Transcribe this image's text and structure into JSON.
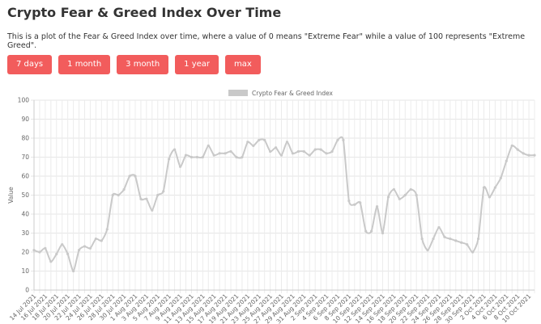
{
  "header": {
    "title": "Crypto Fear & Greed Index Over Time",
    "description": "This is a plot of the Fear & Greed Index over time, where a value of 0 means \"Extreme Fear\" while a value of 100 represents \"Extreme Greed\"."
  },
  "buttons": [
    "7 days",
    "1 month",
    "3 month",
    "1 year",
    "max"
  ],
  "chart_data": {
    "type": "line",
    "ylabel": "Value",
    "grid": true,
    "legend": "top",
    "ylim": [
      0,
      100
    ],
    "yticks": [
      0,
      10,
      20,
      30,
      40,
      50,
      60,
      70,
      80,
      90,
      100
    ],
    "categories": [
      "14 Jul 2021",
      null,
      "16 Jul 2021",
      null,
      "18 Jul 2021",
      null,
      "20 Jul 2021",
      null,
      "22 Jul 2021",
      null,
      "24 Jul 2021",
      null,
      "26 Jul 2021",
      null,
      "28 Jul 2021",
      null,
      "30 Jul 2021",
      null,
      "1 Aug 2021",
      null,
      "3 Aug 2021",
      null,
      "5 Aug 2021",
      null,
      "7 Aug 2021",
      null,
      "9 Aug 2021",
      null,
      "11 Aug 2021",
      null,
      "13 Aug 2021",
      null,
      "15 Aug 2021",
      null,
      "17 Aug 2021",
      null,
      "19 Aug 2021",
      null,
      "21 Aug 2021",
      null,
      "23 Aug 2021",
      null,
      "25 Aug 2021",
      null,
      "27 Aug 2021",
      null,
      "29 Aug 2021",
      null,
      "31 Aug 2021",
      null,
      "2 Sep 2021",
      null,
      "4 Sep 2021",
      null,
      "6 Sep 2021",
      null,
      "8 Sep 2021",
      null,
      "10 Sep 2021",
      null,
      "12 Sep 2021",
      null,
      "14 Sep 2021",
      null,
      "16 Sep 2021",
      null,
      "18 Sep 2021",
      null,
      "20 Sep 2021",
      null,
      "22 Sep 2021",
      null,
      "24 Sep 2021",
      null,
      "26 Sep 2021",
      null,
      "28 Sep 2021",
      null,
      "30 Sep 2021",
      null,
      "2 Oct 2021",
      null,
      "4 Oct 2021",
      null,
      "6 Oct 2021",
      null,
      "8 Oct 2021",
      null,
      "10 Oct 2021",
      null
    ],
    "series": [
      {
        "name": "Crypto Fear & Greed Index",
        "color": "#c9c9c9",
        "values": [
          21,
          20,
          22,
          15,
          19,
          24,
          19,
          10,
          21,
          23,
          22,
          27,
          26,
          32,
          50,
          50,
          53,
          60,
          60,
          48,
          48,
          42,
          50,
          52,
          69,
          74,
          65,
          71,
          70,
          70,
          70,
          76,
          71,
          72,
          72,
          73,
          70,
          70,
          78,
          76,
          79,
          79,
          73,
          75,
          71,
          78,
          72,
          73,
          73,
          71,
          74,
          74,
          72,
          73,
          79,
          79,
          47,
          45,
          46,
          31,
          31,
          44,
          30,
          49,
          53,
          48,
          50,
          53,
          50,
          27,
          21,
          27,
          33,
          28,
          27,
          26,
          25,
          24,
          20,
          27,
          54,
          49,
          54,
          59,
          68,
          76,
          74,
          72,
          71,
          71
        ]
      }
    ]
  }
}
